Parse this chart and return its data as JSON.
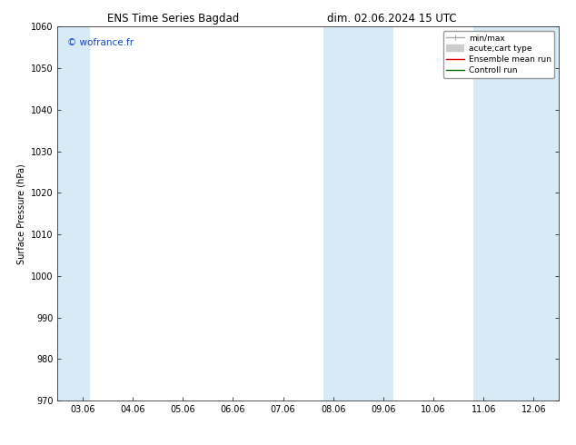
{
  "title_left": "ENS Time Series Bagdad",
  "title_right": "dim. 02.06.2024 15 UTC",
  "ylabel": "Surface Pressure (hPa)",
  "ylim": [
    970,
    1060
  ],
  "yticks": [
    970,
    980,
    990,
    1000,
    1010,
    1020,
    1030,
    1040,
    1050,
    1060
  ],
  "xtick_labels": [
    "03.06",
    "04.06",
    "05.06",
    "06.06",
    "07.06",
    "08.06",
    "09.06",
    "10.06",
    "11.06",
    "12.06"
  ],
  "xtick_positions": [
    0,
    1,
    2,
    3,
    4,
    5,
    6,
    7,
    8,
    9
  ],
  "xlim": [
    -0.5,
    9.5
  ],
  "shaded_bands": [
    {
      "xmin": -0.5,
      "xmax": 0.15,
      "color": "#d8eaf5"
    },
    {
      "xmin": 4.8,
      "xmax": 5.5,
      "color": "#d8eaf5"
    },
    {
      "xmin": 5.5,
      "xmax": 6.2,
      "color": "#d8eaf5"
    },
    {
      "xmin": 7.8,
      "xmax": 8.5,
      "color": "#d8eaf5"
    },
    {
      "xmin": 8.5,
      "xmax": 9.5,
      "color": "#d8eaf5"
    }
  ],
  "watermark": "© wofrance.fr",
  "watermark_color": "#1144cc",
  "background_color": "#ffffff",
  "plot_bg_color": "#ffffff",
  "legend_items": [
    {
      "label": "min/max",
      "color": "#aaaaaa",
      "linewidth": 1.0
    },
    {
      "label": "acute;cart type",
      "color": "#cccccc",
      "linewidth": 6.0
    },
    {
      "label": "Ensemble mean run",
      "color": "#dd0000",
      "linewidth": 1.0
    },
    {
      "label": "Controll run",
      "color": "#006600",
      "linewidth": 1.0
    }
  ],
  "title_fontsize": 8.5,
  "tick_fontsize": 7,
  "ylabel_fontsize": 7,
  "watermark_fontsize": 7.5,
  "legend_fontsize": 6.5
}
